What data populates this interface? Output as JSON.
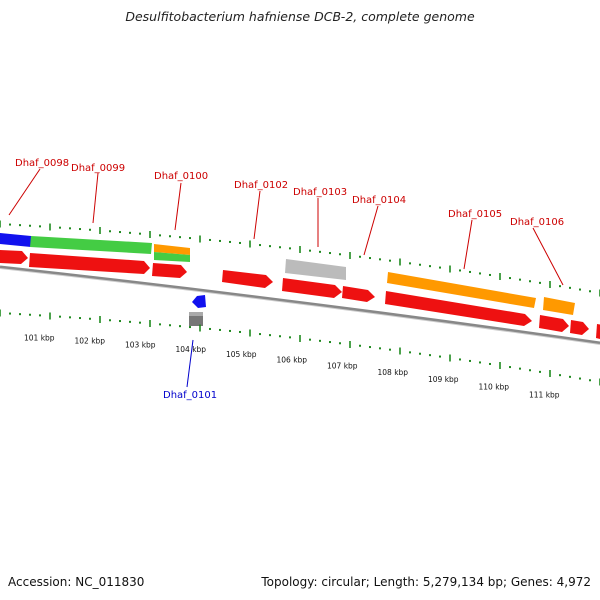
{
  "title": "Desulfitobacterium hafniense DCB-2, complete genome",
  "footer": {
    "accession": "Accession: NC_011830",
    "stats": "Topology: circular; Length: 5,279,134 bp; Genes: 4,972"
  },
  "colors": {
    "red": "#ee1111",
    "green": "#44cc44",
    "orange": "#ff9900",
    "blue": "#1111ee",
    "gray": "#bbbbbb",
    "darkgray": "#777777",
    "tick": "#1f8a1f",
    "label_red": "#cc0000",
    "label_blue": "#0000cc"
  },
  "kbp_labels": [
    "101 kbp",
    "102 kbp",
    "103 kbp",
    "104 kbp",
    "105 kbp",
    "106 kbp",
    "107 kbp",
    "108 kbp",
    "109 kbp",
    "110 kbp",
    "111 kbp"
  ],
  "gene_labels": [
    {
      "text": "Dhaf_0098",
      "color": "red"
    },
    {
      "text": "Dhaf_0099",
      "color": "red"
    },
    {
      "text": "Dhaf_0100",
      "color": "red"
    },
    {
      "text": "Dhaf_0102",
      "color": "red"
    },
    {
      "text": "Dhaf_0103",
      "color": "red"
    },
    {
      "text": "Dhaf_0104",
      "color": "red"
    },
    {
      "text": "Dhaf_0105",
      "color": "red"
    },
    {
      "text": "Dhaf_0106",
      "color": "red"
    },
    {
      "text": "Dhaf_0101",
      "color": "blue"
    }
  ]
}
